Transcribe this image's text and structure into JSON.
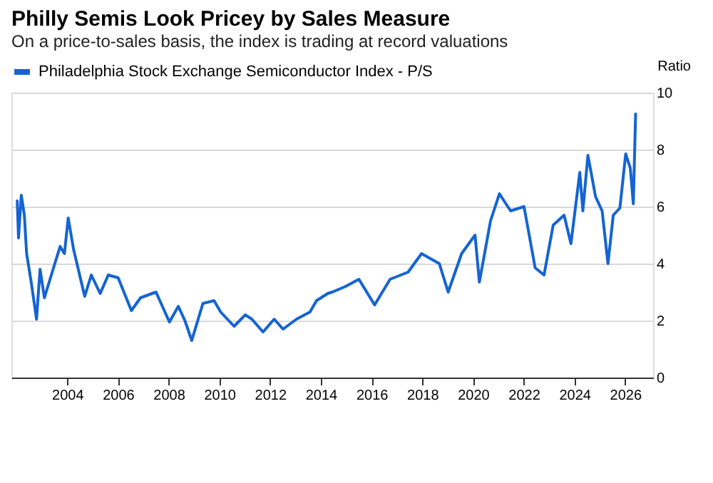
{
  "chart_data": {
    "type": "line",
    "title": "Philly Semis Look Pricey by Sales Measure",
    "subtitle": "On a price-to-sales basis, the index is trading at record valuations",
    "ylabel": "Ratio",
    "series": [
      {
        "name": "Philadelphia Stock Exchange Semiconductor Index - P/S",
        "color": "#1464d2",
        "x": [
          2002.03,
          2002.08,
          2002.19,
          2002.31,
          2002.4,
          2002.58,
          2002.79,
          2002.93,
          2003.1,
          2003.46,
          2003.72,
          2003.89,
          2004.04,
          2004.25,
          2004.69,
          2004.95,
          2005.3,
          2005.62,
          2006.01,
          2006.53,
          2006.89,
          2007.5,
          2008.03,
          2008.38,
          2008.64,
          2008.91,
          2009.35,
          2009.79,
          2010.05,
          2010.58,
          2011.02,
          2011.28,
          2011.72,
          2012.16,
          2012.51,
          2013.04,
          2013.57,
          2013.83,
          2014.27,
          2014.45,
          2014.98,
          2015.5,
          2016.12,
          2016.73,
          2017.44,
          2017.97,
          2018.67,
          2019.02,
          2019.55,
          2020.08,
          2020.25,
          2020.69,
          2021.04,
          2021.48,
          2022.01,
          2022.45,
          2022.8,
          2023.16,
          2023.59,
          2023.86,
          2024.21,
          2024.33,
          2024.53,
          2024.83,
          2025.09,
          2025.32,
          2025.53,
          2025.79,
          2026.02,
          2026.2,
          2026.32,
          2026.41
        ],
        "values": [
          6.2,
          4.9,
          6.4,
          5.7,
          4.35,
          3.35,
          2.05,
          3.8,
          2.8,
          3.85,
          4.6,
          4.35,
          5.6,
          4.5,
          2.85,
          3.6,
          2.95,
          3.6,
          3.5,
          2.35,
          2.8,
          3.0,
          1.95,
          2.5,
          2.0,
          1.3,
          2.6,
          2.7,
          2.3,
          1.8,
          2.2,
          2.05,
          1.6,
          2.05,
          1.7,
          2.05,
          2.3,
          2.7,
          2.95,
          3.0,
          3.2,
          3.45,
          2.55,
          3.45,
          3.7,
          4.35,
          4.0,
          3.0,
          4.35,
          5.0,
          3.35,
          5.5,
          6.45,
          5.85,
          6.0,
          3.85,
          3.6,
          5.35,
          5.7,
          4.7,
          7.2,
          5.85,
          7.8,
          6.35,
          5.85,
          4.0,
          5.7,
          5.95,
          7.85,
          7.35,
          6.1,
          9.25
        ]
      }
    ],
    "xlim": [
      2001.8,
      2027.1
    ],
    "xticks": [
      2004,
      2006,
      2008,
      2010,
      2012,
      2014,
      2016,
      2018,
      2020,
      2022,
      2024,
      2026
    ],
    "ylim": [
      0,
      10
    ],
    "yticks": [
      0,
      2,
      4,
      6,
      8,
      10
    ],
    "grid": "y",
    "legend": "top"
  }
}
